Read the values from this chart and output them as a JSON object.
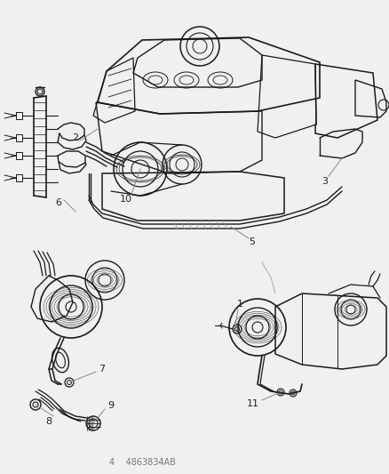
{
  "background_color": "#f0f0f0",
  "line_color": "#1a1a1a",
  "label_color": "#222222",
  "leader_color": "#888888",
  "footer_text": "4    4863834AB",
  "font_size": 8,
  "lw": 0.9,
  "fig_w": 4.38,
  "fig_h": 5.33,
  "dpi": 100
}
